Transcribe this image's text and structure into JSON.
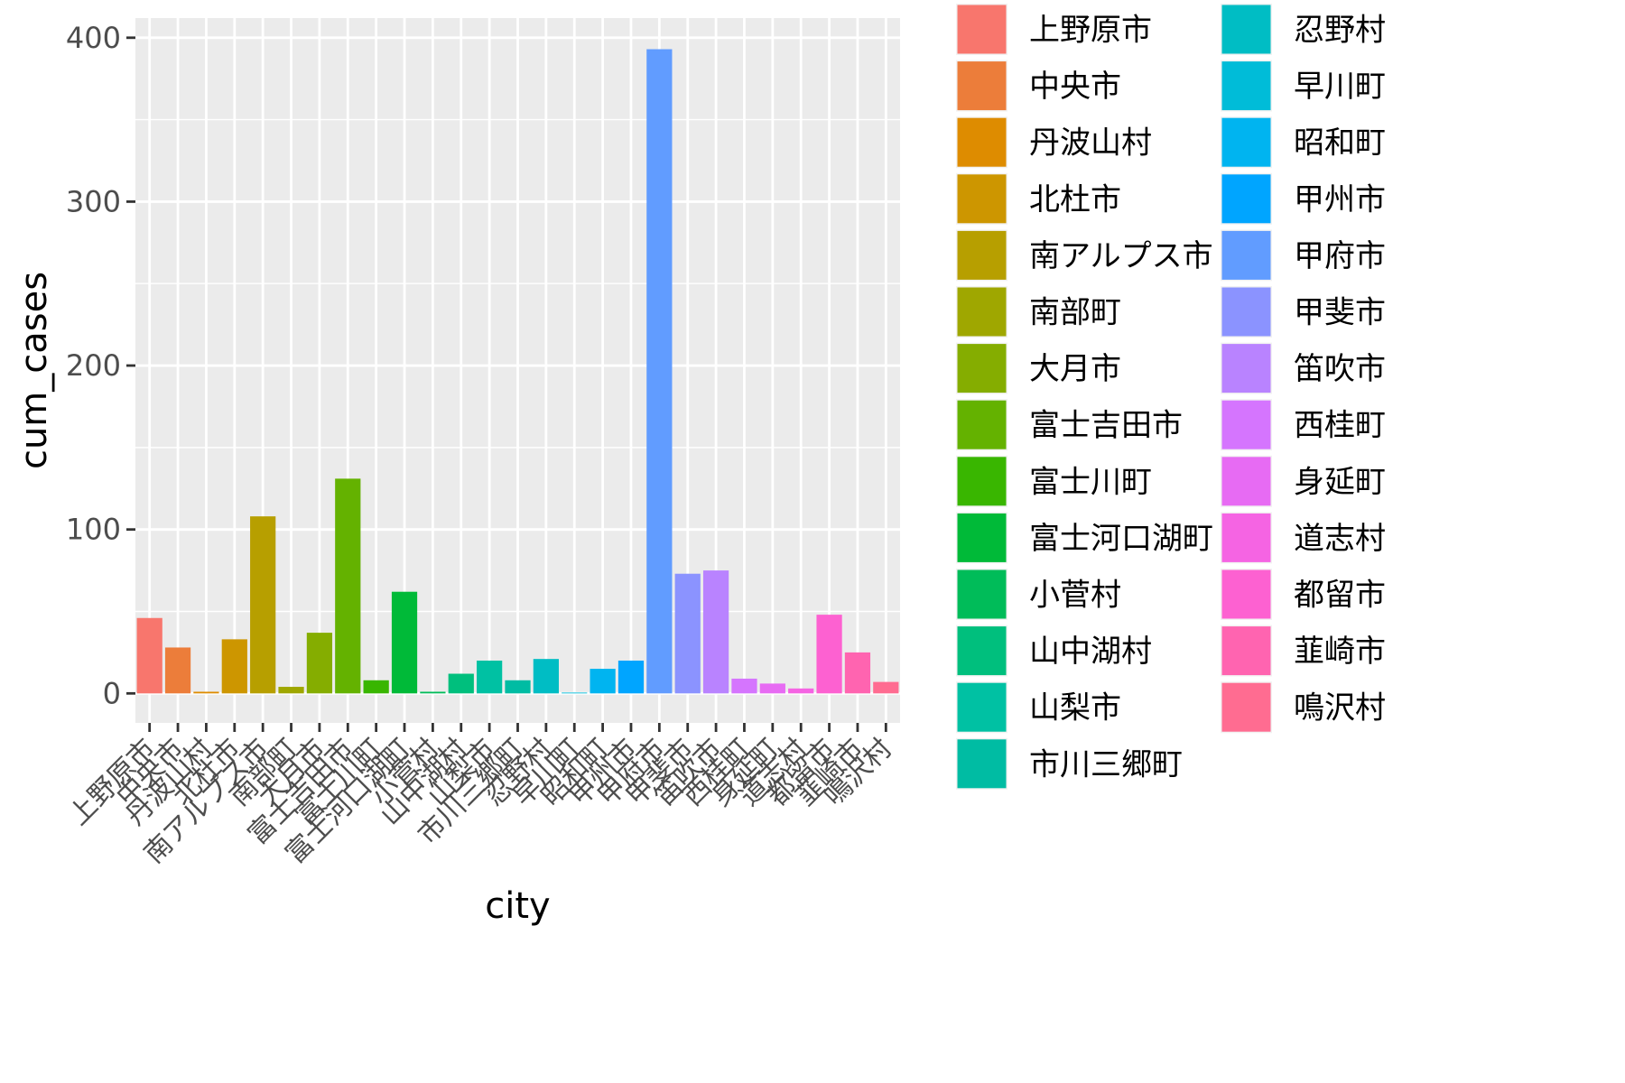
{
  "chart_data": {
    "type": "bar",
    "xlabel": "city",
    "ylabel": "cum_cases",
    "ylim": [
      -18,
      412
    ],
    "yticks": [
      0,
      100,
      200,
      300,
      400
    ],
    "yticks_text": [
      "0",
      "100",
      "200",
      "300",
      "400"
    ],
    "grid": true,
    "legend_position": "right",
    "legend_columns": 2,
    "categories": [
      "上野原市",
      "中央市",
      "丹波山村",
      "北杜市",
      "南アルプス市",
      "南部町",
      "大月市",
      "富士吉田市",
      "富士川町",
      "富士河口湖町",
      "小菅村",
      "山中湖村",
      "山梨市",
      "市川三郷町",
      "忍野村",
      "早川町",
      "昭和町",
      "甲州市",
      "甲府市",
      "甲斐市",
      "笛吹市",
      "西桂町",
      "身延町",
      "道志村",
      "都留市",
      "韮崎市",
      "鳴沢村"
    ],
    "values": [
      46,
      28,
      1,
      33,
      108,
      4,
      37,
      131,
      8,
      62,
      1,
      12,
      20,
      8,
      21,
      0.5,
      15,
      20,
      393,
      73,
      75,
      9,
      6,
      3,
      48,
      25,
      7
    ],
    "colors": [
      "#F8766D",
      "#EC7D3A",
      "#DE8C00",
      "#CD9600",
      "#B79F00",
      "#9FA700",
      "#85AD00",
      "#64B200",
      "#39B600",
      "#00BA38",
      "#00BC59",
      "#00BF7D",
      "#00C1A3",
      "#00BCA3",
      "#00BDC4",
      "#00BCD8",
      "#00B4F0",
      "#00A5FF",
      "#619CFF",
      "#8B93FF",
      "#B983FF",
      "#D575FE",
      "#E76BF3",
      "#F564E3",
      "#FD61D1",
      "#FF64B0",
      "#FF6C91"
    ]
  }
}
